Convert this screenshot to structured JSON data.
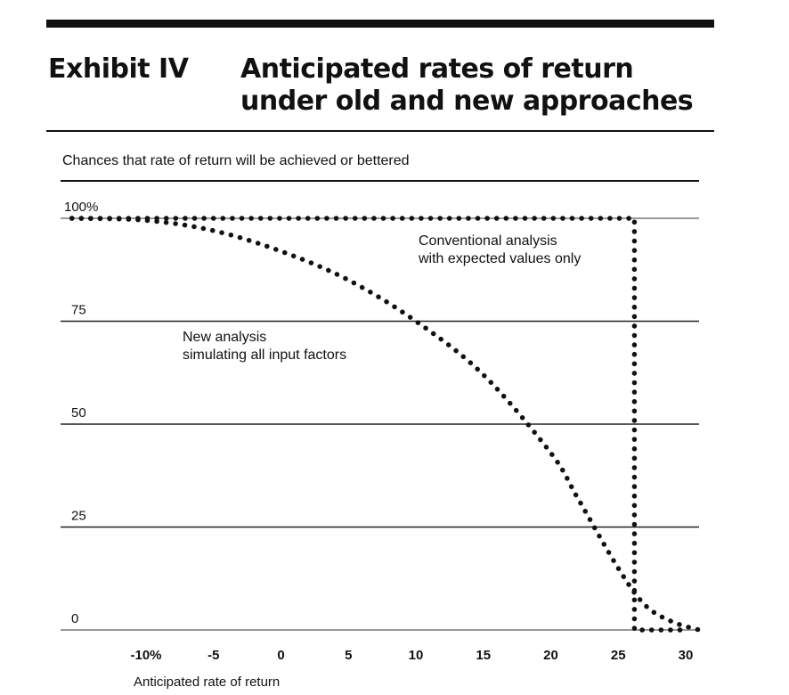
{
  "header": {
    "exhibit_label": "Exhibit IV",
    "title": "Anticipated rates of return under old and new approaches"
  },
  "chart_data": {
    "type": "line",
    "title": "Anticipated rates of return under old and new approaches",
    "ylabel": "Chances that rate of return will be achieved or bettered",
    "xlabel": "Anticipated rate of return",
    "x_ticks": [
      "-10%",
      "-5",
      "0",
      "5",
      "10",
      "15",
      "20",
      "25",
      "30"
    ],
    "x_tick_values": [
      -10,
      -5,
      0,
      5,
      10,
      15,
      20,
      25,
      30
    ],
    "y_ticks": [
      "100%",
      "75",
      "50",
      "25",
      "0"
    ],
    "y_tick_values": [
      100,
      75,
      50,
      25,
      0
    ],
    "xlim": [
      -14,
      31
    ],
    "ylim": [
      0,
      100
    ],
    "grid": "horizontal",
    "series": [
      {
        "name": "Conventional analysis with expected values only",
        "style": "dotted",
        "x": [
          -15.5,
          26.2,
          26.2,
          30
        ],
        "y": [
          100,
          100,
          0,
          0
        ]
      },
      {
        "name": "New analysis simulating all input factors",
        "style": "dotted",
        "x": [
          -15.5,
          -10,
          -5,
          0,
          5,
          10,
          15,
          20,
          22,
          25,
          27,
          29,
          31
        ],
        "y": [
          100,
          99.5,
          97,
          92,
          85,
          75,
          62,
          43,
          32,
          15,
          6,
          2,
          0
        ]
      }
    ],
    "annotations": [
      {
        "series": "Conventional analysis with expected values only",
        "lines": [
          "Conventional analysis",
          "with expected values only"
        ]
      },
      {
        "series": "New analysis simulating all input factors",
        "lines": [
          "New analysis",
          "simulating all input factors"
        ]
      }
    ]
  }
}
